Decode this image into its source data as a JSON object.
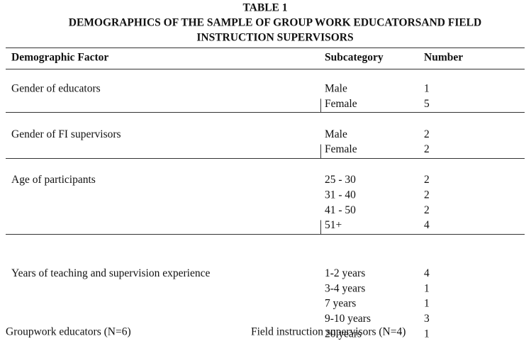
{
  "header": {
    "label": "TABLE 1",
    "title_lines": [
      "DEMOGRAPHICS OF THE SAMPLE OF GROUP WORK EDUCATORSAND FIELD",
      "INSTRUCTION SUPERVISORS"
    ]
  },
  "table": {
    "columns": [
      "Demographic Factor",
      "Subcategory",
      "Number"
    ],
    "groups": [
      {
        "factor": "Gender of educators",
        "rows": [
          [
            "Male",
            1
          ],
          [
            "Female",
            5
          ]
        ]
      },
      {
        "factor": "Gender of FI supervisors",
        "rows": [
          [
            "Male",
            2
          ],
          [
            "Female",
            2
          ]
        ]
      },
      {
        "factor": "Age of participants",
        "rows": [
          [
            "25 - 30",
            2
          ],
          [
            "31 - 40",
            2
          ],
          [
            "41 - 50",
            2
          ],
          [
            "51+",
            4
          ]
        ]
      },
      {
        "factor": "Years of teaching and supervision experience",
        "rows": [
          [
            "1-2 years",
            4
          ],
          [
            "3-4 years",
            1
          ],
          [
            "7 years",
            1
          ],
          [
            "9-10 years",
            3
          ],
          [
            "20 years",
            1
          ]
        ]
      }
    ]
  },
  "footer": [
    "Groupwork educators (N=6)",
    "Field instruction supervisors (N=4)"
  ]
}
